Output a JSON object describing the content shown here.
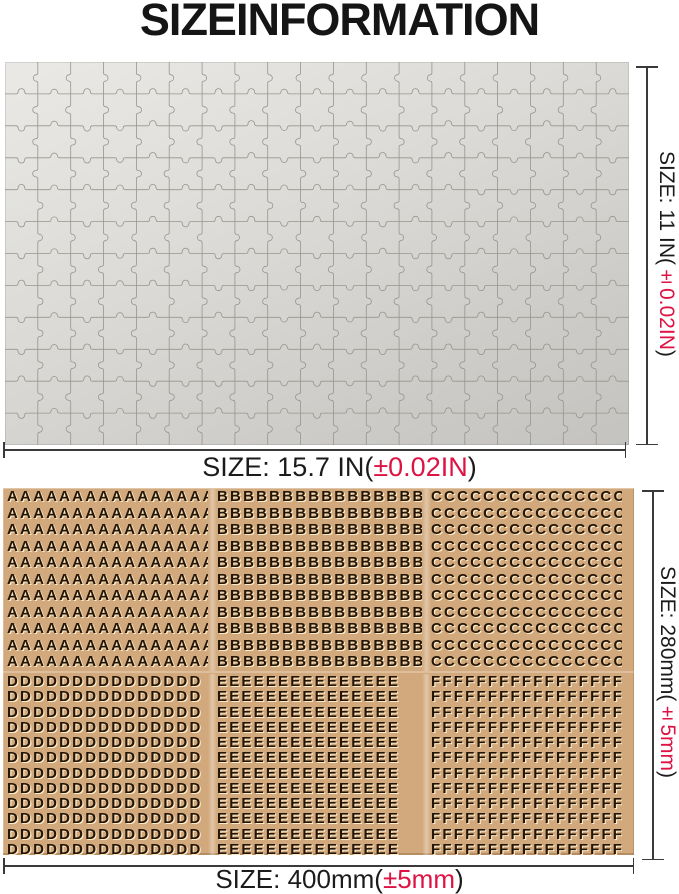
{
  "title": "SIZEINFORMATION",
  "colors": {
    "accent_red": "#de1243",
    "label_black": "#1b1b1b",
    "sheet_tan": "#d2a97d",
    "letter_brown": "#241505",
    "puzzle_gray": "#d8d7d3",
    "puzzle_line_gray": "#97958e"
  },
  "puzzle": {
    "rows": 12,
    "cols": 19
  },
  "dimensions": {
    "puzzle_height": {
      "prefix": "SIZE: 11 IN(",
      "tolerance": "±0.02IN",
      "suffix": ")"
    },
    "puzzle_width": {
      "prefix": "SIZE: 15.7 IN(",
      "tolerance": "±0.02IN",
      "suffix": ")"
    },
    "sheet_height": {
      "prefix": "SIZE: 280mm(",
      "tolerance": "±5mm",
      "suffix": ")"
    },
    "sheet_width": {
      "prefix": "SIZE: 400mm(",
      "tolerance": "±5mm",
      "suffix": ")"
    }
  },
  "letter_sheet": {
    "top_blocks": [
      {
        "letter": "A",
        "per_row": 16,
        "rows": 11
      },
      {
        "letter": "B",
        "per_row": 16,
        "rows": 11
      },
      {
        "letter": "C",
        "per_row": 15,
        "rows": 11
      }
    ],
    "bottom_blocks": [
      {
        "letter": "D",
        "per_row": 15,
        "rows": 12
      },
      {
        "letter": "E",
        "per_row": 15,
        "rows": 12
      },
      {
        "letter": "F",
        "per_row": 17,
        "rows": 12
      }
    ]
  }
}
